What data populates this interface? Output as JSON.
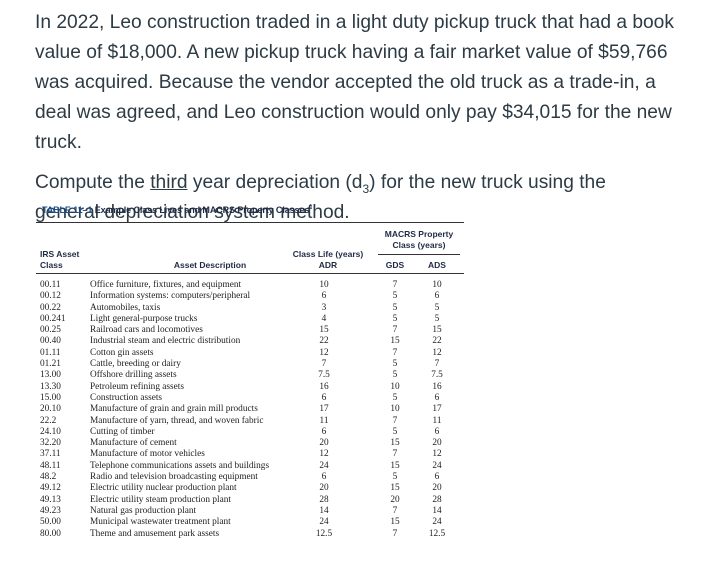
{
  "question": {
    "paragraph1": "In 2022, Leo construction traded in a light duty pickup truck that had a book value of $18,000. A new pickup truck having a fair market value of $59,766 was acquired. Because the vendor accepted the old truck as a trade-in, a deal was agreed, and Leo construction would only pay $34,015 for the new truck.",
    "p2_before": "Compute the ",
    "p2_underlined": "third",
    "p2_mid": " year depreciation (d",
    "p2_sub": "3",
    "p2_after": ") for the new truck using the general depreciation system method."
  },
  "table": {
    "table_number": "TABLE 11–1",
    "title": "Example Class Lives and MACRS Property Classes",
    "title_mark": "*",
    "headers": {
      "irs_asset_class": [
        "IRS Asset",
        "Class"
      ],
      "asset_description": "Asset Description",
      "class_life": [
        "Class Life (years)",
        "ADR"
      ],
      "macrs": [
        "MACRS Property",
        "Class (years)"
      ],
      "gds": "GDS",
      "ads": "ADS"
    },
    "rows": [
      {
        "cls": "00.11",
        "desc": "Office furniture, fixtures, and equipment",
        "adr": "10",
        "gds": "7",
        "ads": "10"
      },
      {
        "cls": "00.12",
        "desc": "Information systems: computers/peripheral",
        "adr": "6",
        "gds": "5",
        "ads": "6"
      },
      {
        "cls": "00.22",
        "desc": "Automobiles, taxis",
        "adr": "3",
        "gds": "5",
        "ads": "5"
      },
      {
        "cls": "00.241",
        "desc": "Light general-purpose trucks",
        "adr": "4",
        "gds": "5",
        "ads": "5"
      },
      {
        "cls": "00.25",
        "desc": "Railroad cars and locomotives",
        "adr": "15",
        "gds": "7",
        "ads": "15"
      },
      {
        "cls": "00.40",
        "desc": "Industrial steam and electric distribution",
        "adr": "22",
        "gds": "15",
        "ads": "22"
      },
      {
        "cls": "01.11",
        "desc": "Cotton gin assets",
        "adr": "12",
        "gds": "7",
        "ads": "12"
      },
      {
        "cls": "01.21",
        "desc": "Cattle, breeding or dairy",
        "adr": "7",
        "gds": "5",
        "ads": "7"
      },
      {
        "cls": "13.00",
        "desc": "Offshore drilling assets",
        "adr": "7.5",
        "gds": "5",
        "ads": "7.5"
      },
      {
        "cls": "13.30",
        "desc": "Petroleum refining assets",
        "adr": "16",
        "gds": "10",
        "ads": "16"
      },
      {
        "cls": "15.00",
        "desc": "Construction assets",
        "adr": "6",
        "gds": "5",
        "ads": "6"
      },
      {
        "cls": "20.10",
        "desc": "Manufacture of grain and grain mill products",
        "adr": "17",
        "gds": "10",
        "ads": "17"
      },
      {
        "cls": "22.2",
        "desc": "Manufacture of yarn, thread, and woven fabric",
        "adr": "11",
        "gds": "7",
        "ads": "11"
      },
      {
        "cls": "24.10",
        "desc": "Cutting of timber",
        "adr": "6",
        "gds": "5",
        "ads": "6"
      },
      {
        "cls": "32.20",
        "desc": "Manufacture of cement",
        "adr": "20",
        "gds": "15",
        "ads": "20"
      },
      {
        "cls": "37.11",
        "desc": "Manufacture of motor vehicles",
        "adr": "12",
        "gds": "7",
        "ads": "12"
      },
      {
        "cls": "48.11",
        "desc": "Telephone communications assets and buildings",
        "adr": "24",
        "gds": "15",
        "ads": "24"
      },
      {
        "cls": "48.2",
        "desc": "Radio and television broadcasting equipment",
        "adr": "6",
        "gds": "5",
        "ads": "6"
      },
      {
        "cls": "49.12",
        "desc": "Electric utility nuclear production plant",
        "adr": "20",
        "gds": "15",
        "ads": "20"
      },
      {
        "cls": "49.13",
        "desc": "Electric utility steam production plant",
        "adr": "28",
        "gds": "20",
        "ads": "28"
      },
      {
        "cls": "49.23",
        "desc": "Natural gas production plant",
        "adr": "14",
        "gds": "7",
        "ads": "14"
      },
      {
        "cls": "50.00",
        "desc": "Municipal wastewater treatment plant",
        "adr": "24",
        "gds": "15",
        "ads": "24"
      },
      {
        "cls": "80.00",
        "desc": "Theme and amusement park assets",
        "adr": "12.5",
        "gds": "7",
        "ads": "12.5"
      }
    ]
  }
}
